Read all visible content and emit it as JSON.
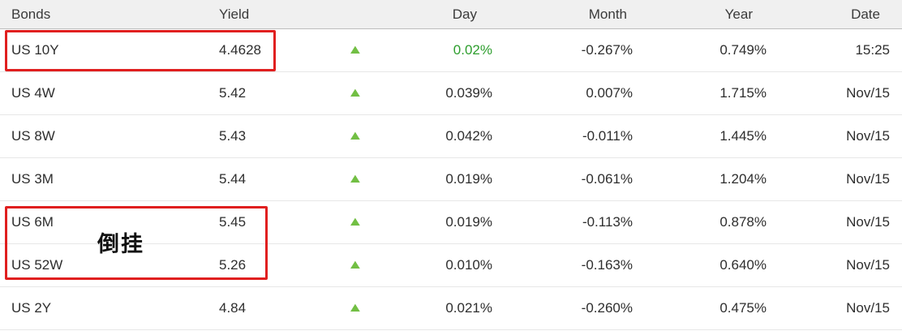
{
  "table": {
    "headers": [
      "Bonds",
      "Yield",
      "",
      "Day",
      "Month",
      "Year",
      "Date"
    ],
    "rows": [
      {
        "bond": "US 10Y",
        "yield": "4.4628",
        "day": "0.02%",
        "month": "-0.267%",
        "year": "0.749%",
        "date": "15:25"
      },
      {
        "bond": "US 4W",
        "yield": "5.42",
        "day": "0.039%",
        "month": "0.007%",
        "year": "1.715%",
        "date": "Nov/15"
      },
      {
        "bond": "US 8W",
        "yield": "5.43",
        "day": "0.042%",
        "month": "-0.011%",
        "year": "1.445%",
        "date": "Nov/15"
      },
      {
        "bond": "US 3M",
        "yield": "5.44",
        "day": "0.019%",
        "month": "-0.061%",
        "year": "1.204%",
        "date": "Nov/15"
      },
      {
        "bond": "US 6M",
        "yield": "5.45",
        "day": "0.019%",
        "month": "-0.113%",
        "year": "0.878%",
        "date": "Nov/15"
      },
      {
        "bond": "US 52W",
        "yield": "5.26",
        "day": "0.010%",
        "month": "-0.163%",
        "year": "0.640%",
        "date": "Nov/15"
      },
      {
        "bond": "US 2Y",
        "yield": "4.84",
        "day": "0.021%",
        "month": "-0.260%",
        "year": "0.475%",
        "date": "Nov/15"
      }
    ]
  },
  "icons": {
    "up_arrow": "▲"
  },
  "annotations": {
    "inversion_label": "倒挂"
  },
  "colors": {
    "arrow_green": "#72bf44",
    "day_green": "#2e9e2e",
    "annotation_red": "#e01f1f"
  }
}
